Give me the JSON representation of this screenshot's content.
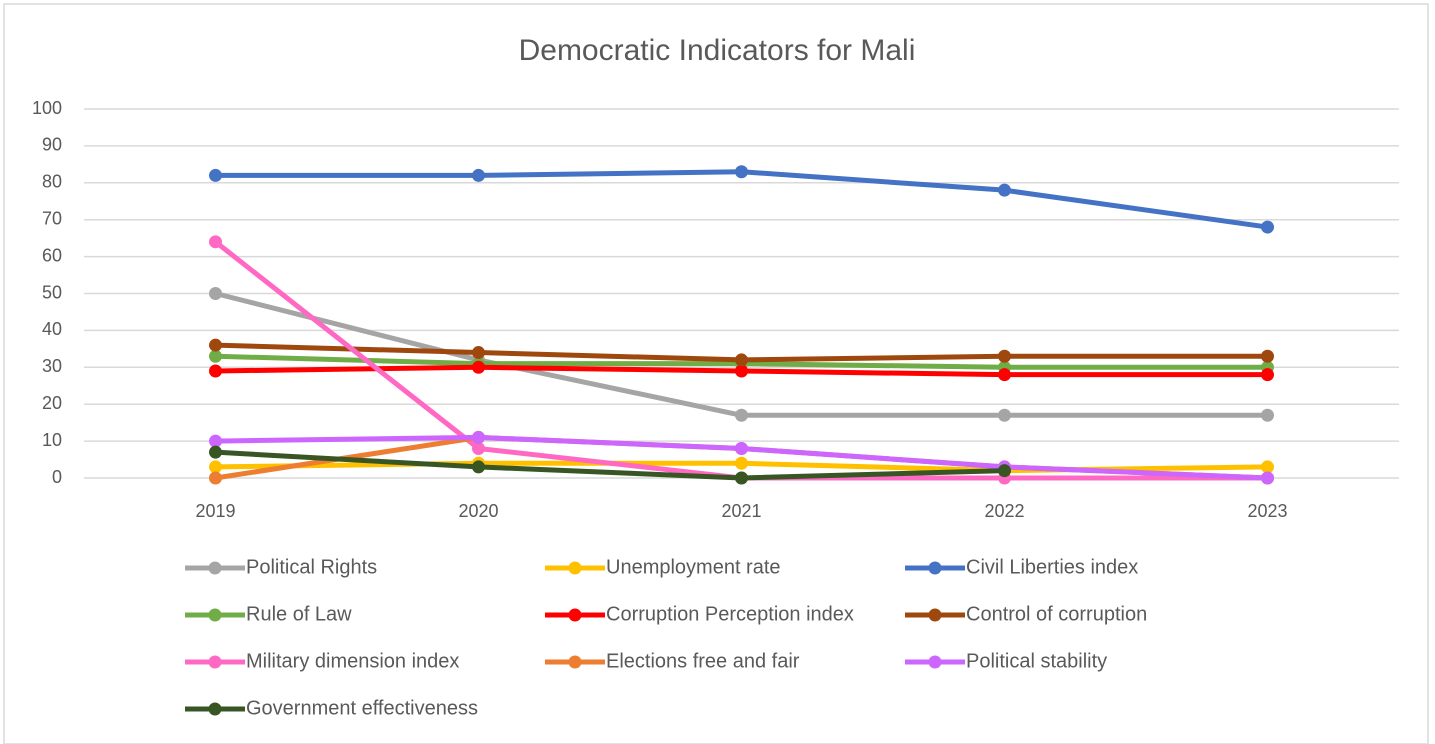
{
  "chart_data": {
    "type": "line",
    "title": "Democratic Indicators for Mali",
    "categories": [
      "2019",
      "2020",
      "2021",
      "2022",
      "2023"
    ],
    "series": [
      {
        "name": "Political Rights",
        "color": "#a5a5a5",
        "values": [
          50,
          32,
          17,
          17,
          17
        ]
      },
      {
        "name": "Unemployment rate",
        "color": "#ffc000",
        "values": [
          3,
          4,
          4,
          2,
          3
        ]
      },
      {
        "name": "Civil Liberties index",
        "color": "#4472c4",
        "values": [
          82,
          82,
          83,
          78,
          68
        ]
      },
      {
        "name": "Rule of Law",
        "color": "#70ad47",
        "values": [
          33,
          31,
          31,
          30,
          30
        ]
      },
      {
        "name": "Corruption Perception index",
        "color": "#ff0000",
        "values": [
          29,
          30,
          29,
          28,
          28
        ]
      },
      {
        "name": "Control of corruption",
        "color": "#9e480e",
        "values": [
          36,
          34,
          32,
          33,
          33
        ]
      },
      {
        "name": "Military dimension index",
        "color": "#ff69c4",
        "values": [
          64,
          8,
          0,
          0,
          0
        ]
      },
      {
        "name": "Elections free and fair",
        "color": "#ed7d31",
        "values": [
          0,
          11,
          8,
          3,
          0
        ]
      },
      {
        "name": "Political stability",
        "color": "#cc66ff",
        "values": [
          10,
          11,
          8,
          3,
          0
        ]
      },
      {
        "name": "Government effectiveness",
        "color": "#375623",
        "values": [
          7,
          3,
          0,
          2,
          null
        ]
      }
    ],
    "ylim": [
      0,
      100
    ],
    "yticks": [
      0,
      10,
      20,
      30,
      40,
      50,
      60,
      70,
      80,
      90,
      100
    ],
    "grid": true,
    "legend": "bottom"
  }
}
